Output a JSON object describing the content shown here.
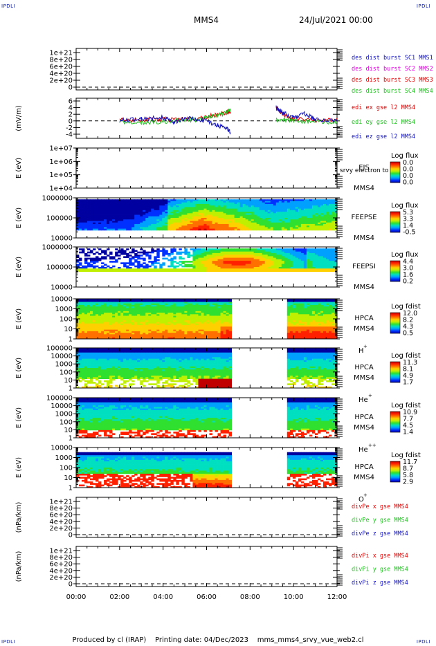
{
  "header": {
    "corner_label": "IPDLI",
    "spacecraft": "MMS4",
    "date_time": "24/Jul/2021 00:00"
  },
  "footer": {
    "produced_by": "Produced by cl (IRAP)",
    "printing_date": "Printing date: 04/Dec/2023",
    "filename": "mms_mms4_srvy_vue_web2.cl"
  },
  "colors": {
    "spectrogram": [
      "#0000a0",
      "#0030ff",
      "#00a0ff",
      "#00e0c0",
      "#30e030",
      "#c0f000",
      "#ffd000",
      "#ff7000",
      "#ff2000",
      "#c00000"
    ]
  },
  "chart_data": {
    "type": "stacked_timeseries_and_spectrograms",
    "x_ticks": [
      "00:00",
      "02:00",
      "04:00",
      "06:00",
      "08:00",
      "10:00",
      "12:00"
    ],
    "x_range_hours": [
      0,
      12
    ],
    "data_gap_hours": [
      7.2,
      9.7
    ],
    "panels": [
      {
        "id": "des",
        "type": "line",
        "ylabel": "",
        "y_ticks": [
          "1e+21",
          "8e+20",
          "6e+20",
          "4e+20",
          "2e+20",
          "0"
        ],
        "legend": [
          "des dist burst SC1 MMS1",
          "des dist burst SC2 MMS2",
          "des dist burst SC3 MMS3",
          "des dist burst SC4 MMS4"
        ],
        "legend_colors": [
          "#1010c0",
          "#e000e0",
          "#e00000",
          "#20c020"
        ],
        "zero_line": true
      },
      {
        "id": "edi",
        "type": "line",
        "ylabel": "(mV/m)",
        "y_ticks": [
          "6",
          "4",
          "2",
          "0",
          "-2",
          "-4"
        ],
        "ylim": [
          -4,
          6
        ],
        "legend": [
          "edi ex gse l2 MMS4",
          "edi ey gse l2 MMS4",
          "edi ez gse l2 MMS4"
        ],
        "legend_colors": [
          "#e00000",
          "#20c020",
          "#1010c0"
        ],
        "zero_line": true,
        "series": [
          {
            "name": "edi ex gse l2 MMS4",
            "x": [
              2.0,
              3.0,
              4.0,
              5.0,
              5.8,
              6.4,
              6.9,
              7.1,
              9.2,
              9.4,
              9.6,
              10.0,
              11.0,
              12.0
            ],
            "y": [
              0.3,
              0.2,
              0.4,
              0.6,
              0.9,
              1.8,
              2.6,
              2.9,
              3.8,
              2.8,
              1.5,
              0.5,
              0.2,
              0.1
            ]
          },
          {
            "name": "edi ey gse l2 MMS4",
            "x": [
              2.0,
              3.0,
              4.0,
              5.0,
              5.8,
              6.4,
              6.9,
              7.1,
              9.2,
              9.6,
              10.0,
              11.0,
              12.0
            ],
            "y": [
              -0.4,
              -0.5,
              -0.2,
              0.1,
              0.5,
              1.5,
              2.5,
              3.2,
              0.1,
              0.2,
              0.1,
              -0.2,
              -0.3
            ]
          },
          {
            "name": "edi ez gse l2 MMS4",
            "x": [
              2.0,
              3.0,
              4.0,
              4.5,
              5.0,
              5.8,
              6.4,
              6.9,
              7.1,
              9.2,
              9.5,
              10.0,
              10.5,
              11.0,
              12.0
            ],
            "y": [
              0.2,
              0.5,
              1.0,
              -0.5,
              0.8,
              0.3,
              -1.0,
              -2.2,
              -3.2,
              4.0,
              2.5,
              1.0,
              2.2,
              0.5,
              0.0
            ]
          }
        ]
      },
      {
        "id": "eis",
        "type": "spectrogram",
        "ylabel": "E (eV)",
        "y_ticks": [
          "1e+07",
          "1e+06",
          "1e+05",
          "1e+04"
        ],
        "instrument": [
          "EIS",
          "MMS4"
        ],
        "extra_label": "l_srvy electron to",
        "cbar_title": "Log flux",
        "cbar_ticks": [
          "0.0",
          "0.0",
          "0.0",
          "0.0"
        ],
        "filled": false
      },
      {
        "id": "feepse",
        "type": "spectrogram",
        "ylabel": "E (eV)",
        "y_ticks": [
          "1000000",
          "100000",
          "10000"
        ],
        "instrument": [
          "FEEPSE",
          "MMS4"
        ],
        "cbar_title": "Log flux",
        "cbar_ticks": [
          "5.3",
          "3.3",
          "1.4",
          "-0.5"
        ],
        "filled": true
      },
      {
        "id": "feepsi",
        "type": "spectrogram",
        "ylabel": "E (eV)",
        "y_ticks": [
          "1000000",
          "100000",
          "10000"
        ],
        "instrument": [
          "FEEPSI",
          "MMS4"
        ],
        "cbar_title": "Log flux",
        "cbar_ticks": [
          "4.4",
          "3.0",
          "1.6",
          "0.2"
        ],
        "filled": true
      },
      {
        "id": "hpca_h",
        "type": "spectrogram",
        "ylabel": "E (eV)",
        "y_ticks": [
          "10000",
          "1000",
          "100",
          "10",
          "1"
        ],
        "instrument": [
          "HPCA",
          "MMS4"
        ],
        "species": "H",
        "species_charge": "+",
        "cbar_title": "Log fdist",
        "cbar_ticks": [
          "12.0",
          "8.2",
          "4.3",
          "0.5"
        ],
        "filled": true
      },
      {
        "id": "hpca_he",
        "type": "spectrogram",
        "ylabel": "E (eV)",
        "y_ticks": [
          "100000",
          "10000",
          "1000",
          "100",
          "10",
          "1"
        ],
        "instrument": [
          "HPCA",
          "MMS4"
        ],
        "species": "He",
        "species_charge": "+",
        "cbar_title": "Log fdist",
        "cbar_ticks": [
          "11.3",
          "8.1",
          "4.9",
          "1.7"
        ],
        "filled": true
      },
      {
        "id": "hpca_hepp",
        "type": "spectrogram",
        "ylabel": "E (eV)",
        "y_ticks": [
          "100000",
          "10000",
          "1000",
          "100",
          "10",
          "1"
        ],
        "instrument": [
          "HPCA",
          "MMS4"
        ],
        "species": "He",
        "species_charge": "++",
        "cbar_title": "Log fdist",
        "cbar_ticks": [
          "10.9",
          "7.7",
          "4.5",
          "1.4"
        ],
        "filled": true
      },
      {
        "id": "hpca_o",
        "type": "spectrogram",
        "ylabel": "E (eV)",
        "y_ticks": [
          "10000",
          "1000",
          "100",
          "10",
          "1"
        ],
        "instrument": [
          "HPCA",
          "MMS4"
        ],
        "species": "O",
        "species_charge": "+",
        "cbar_title": "Log fdist",
        "cbar_ticks": [
          "11.7",
          "8.7",
          "5.8",
          "2.9"
        ],
        "filled": true
      },
      {
        "id": "divpe",
        "type": "line",
        "ylabel": "(nPa/km)",
        "y_ticks": [
          "1e+21",
          "8e+20",
          "6e+20",
          "4e+20",
          "2e+20",
          "0"
        ],
        "legend": [
          "divPe x gse MMS4",
          "divPe y gse MMS4",
          "divPe z gse MMS4"
        ],
        "legend_colors": [
          "#e00000",
          "#20c020",
          "#1010c0"
        ],
        "zero_line": true
      },
      {
        "id": "divpi",
        "type": "line",
        "ylabel": "(nPa/km)",
        "y_ticks": [
          "1e+21",
          "8e+20",
          "6e+20",
          "4e+20",
          "2e+20",
          "0"
        ],
        "legend": [
          "divPi x gse MMS4",
          "divPi y gse MMS4",
          "divPi z gse MMS4"
        ],
        "legend_colors": [
          "#e00000",
          "#20c020",
          "#1010c0"
        ],
        "zero_line": true
      }
    ]
  }
}
